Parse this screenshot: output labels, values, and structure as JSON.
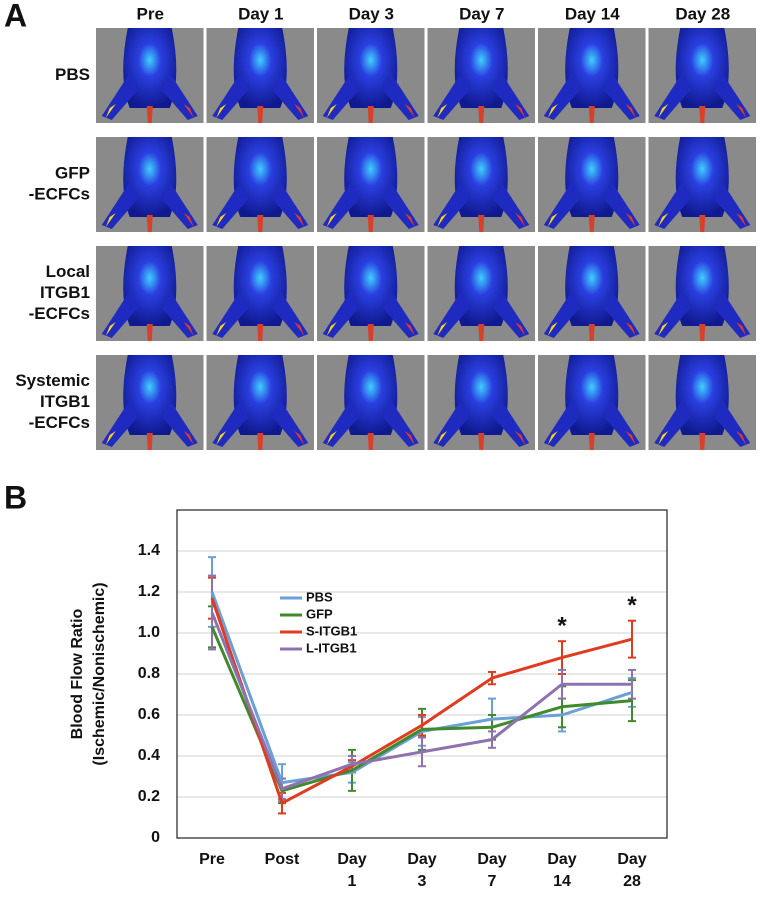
{
  "panel_a": {
    "label": "A",
    "columns": [
      "Pre",
      "Day 1",
      "Day 3",
      "Day 7",
      "Day 14",
      "Day 28"
    ],
    "rows": [
      [
        "PBS"
      ],
      [
        "GFP",
        "-ECFCs"
      ],
      [
        "Local",
        "ITGB1",
        "-ECFCs"
      ],
      [
        "Systemic",
        "ITGB1",
        "-ECFCs"
      ]
    ]
  },
  "panel_b_label": "B",
  "chart_data": {
    "type": "line",
    "y_label": [
      "Blood Flow Ratio",
      "(Ischemic/Nonischemic)"
    ],
    "categories": [
      [
        "Pre"
      ],
      [
        "Post"
      ],
      [
        "Day",
        "1"
      ],
      [
        "Day",
        "3"
      ],
      [
        "Day",
        "7"
      ],
      [
        "Day",
        "14"
      ],
      [
        "Day",
        "28"
      ]
    ],
    "ylim": [
      0,
      1.6
    ],
    "yticks": [
      0,
      0.2,
      0.4,
      0.6,
      0.8,
      {
        "value": 1,
        "label": "1.0"
      },
      1.2,
      1.4
    ],
    "grid": true,
    "legend_loc": "upper left",
    "series": [
      {
        "name": "PBS",
        "color": "#6a9fd8",
        "values": [
          1.2,
          0.27,
          0.32,
          0.52,
          0.58,
          0.6,
          0.71
        ],
        "errors": [
          0.17,
          0.09,
          0.05,
          0.07,
          0.1,
          0.08,
          0.07
        ]
      },
      {
        "name": "GFP",
        "color": "#3f8a2a",
        "values": [
          1.03,
          0.23,
          0.33,
          0.53,
          0.54,
          0.64,
          0.67
        ],
        "errors": [
          0.1,
          0.06,
          0.1,
          0.1,
          0.06,
          0.1,
          0.1
        ]
      },
      {
        "name": "S-ITGB1",
        "color": "#e03a1f",
        "values": [
          1.17,
          0.17,
          0.35,
          0.55,
          0.78,
          0.88,
          0.97
        ],
        "errors": [
          0.1,
          0.05,
          0.03,
          0.05,
          0.03,
          0.08,
          0.09
        ]
      },
      {
        "name": "L-ITGB1",
        "color": "#8e72b0",
        "values": [
          1.1,
          0.24,
          0.36,
          0.42,
          0.48,
          0.75,
          0.75
        ],
        "errors": [
          0.18,
          0.05,
          0.04,
          0.07,
          0.04,
          0.07,
          0.07
        ]
      }
    ],
    "significance": [
      null,
      null,
      null,
      null,
      null,
      "*",
      "*"
    ]
  }
}
